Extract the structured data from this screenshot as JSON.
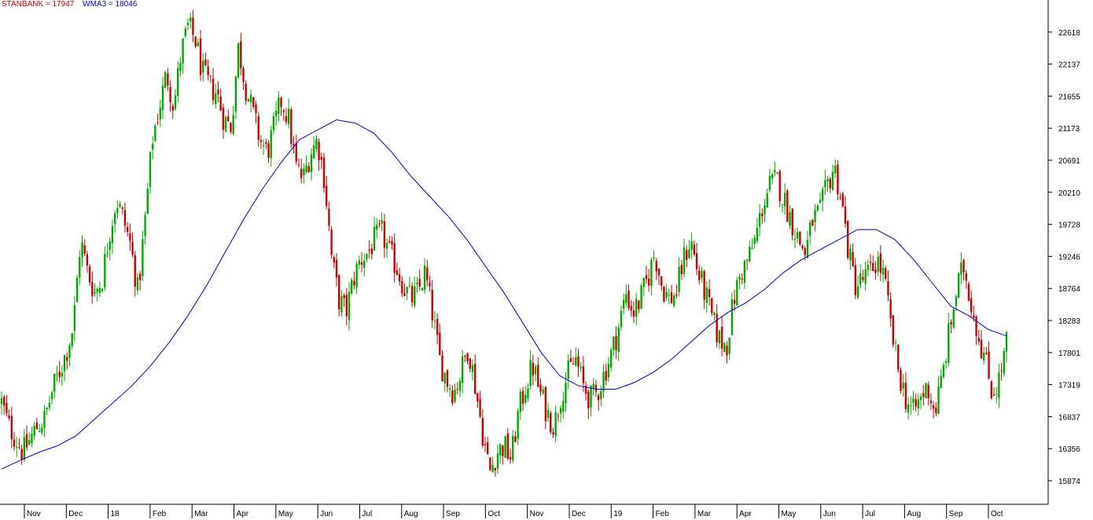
{
  "legend": {
    "price_label": "STANBANK = 17947",
    "wma_label": "WMA3 = 18046"
  },
  "colors": {
    "up": "#00aa00",
    "down": "#cc0000",
    "wma": "#0000cc",
    "price_label": "#cc0000",
    "wma_label": "#0000cc"
  },
  "chart_data": {
    "type": "candlestick",
    "title": "",
    "xlabel": "",
    "ylabel": "",
    "ylim": [
      15520,
      23100
    ],
    "y_ticks": [
      22618,
      22137,
      21655,
      21173,
      20691,
      20210,
      19728,
      19246,
      18764,
      18283,
      17801,
      17319,
      16837,
      16356,
      15874
    ],
    "x_ticks": [
      "Nov",
      "Dec",
      "18",
      "Feb",
      "Mar",
      "Apr",
      "May",
      "Jun",
      "Jul",
      "Aug",
      "Sep",
      "Oct",
      "Nov",
      "Dec",
      "19",
      "Feb",
      "Mar",
      "Apr",
      "May",
      "Jun",
      "Jul",
      "Aug",
      "Sep",
      "Oct"
    ],
    "series": [
      {
        "name": "STANBANK",
        "kind": "close",
        "values": [
          17050,
          16700,
          16500,
          16300,
          16500,
          16700,
          16800,
          17200,
          17500,
          17800,
          18200,
          19500,
          19000,
          18700,
          18900,
          19600,
          20100,
          19800,
          19400,
          18700,
          19800,
          21000,
          21500,
          22000,
          21500,
          22300,
          22700,
          22500,
          22000,
          21800,
          21700,
          21300,
          21200,
          22400,
          21800,
          21400,
          21000,
          20800,
          21200,
          21600,
          21300,
          20600,
          20400,
          20800,
          21000,
          20400,
          19200,
          18600,
          18400,
          18900,
          19200,
          19300,
          19500,
          19600,
          19300,
          19100,
          18800,
          18600,
          18700,
          19000,
          18400,
          17700,
          17400,
          17200,
          17500,
          17900,
          17300,
          16600,
          16000,
          16300,
          16400,
          16200,
          16900,
          17300,
          17600,
          17200,
          16900,
          16700,
          17200,
          17500,
          17700,
          17300,
          17100,
          17200,
          17500,
          17800,
          18200,
          18700,
          18400,
          18600,
          18900,
          19300,
          18800,
          18600,
          18700,
          19200,
          19500,
          19000,
          18700,
          18300,
          18000,
          17900,
          18600,
          19000,
          19200,
          19500,
          20000,
          20300,
          20400,
          20100,
          19800,
          19500,
          19300,
          19800,
          19900,
          20300,
          20600,
          20100,
          19300,
          18800,
          18900,
          19000,
          19200,
          18900,
          18100,
          17500,
          17100,
          16900,
          17100,
          17300,
          16900,
          17400,
          18100,
          18700,
          19100,
          18600,
          18100,
          17700,
          17200,
          17400,
          17947
        ]
      },
      {
        "name": "WMA3",
        "kind": "line",
        "values": [
          16050,
          16180,
          16300,
          16400,
          16550,
          16800,
          17050,
          17300,
          17600,
          17950,
          18350,
          18800,
          19300,
          19800,
          20250,
          20650,
          21000,
          21150,
          21300,
          21250,
          21100,
          20800,
          20450,
          20150,
          19850,
          19500,
          19100,
          18700,
          18250,
          17800,
          17450,
          17300,
          17250,
          17250,
          17350,
          17500,
          17700,
          17950,
          18200,
          18400,
          18550,
          18750,
          19000,
          19200,
          19350,
          19500,
          19650,
          19650,
          19500,
          19200,
          18850,
          18500,
          18350,
          18150,
          18050
        ]
      }
    ]
  }
}
